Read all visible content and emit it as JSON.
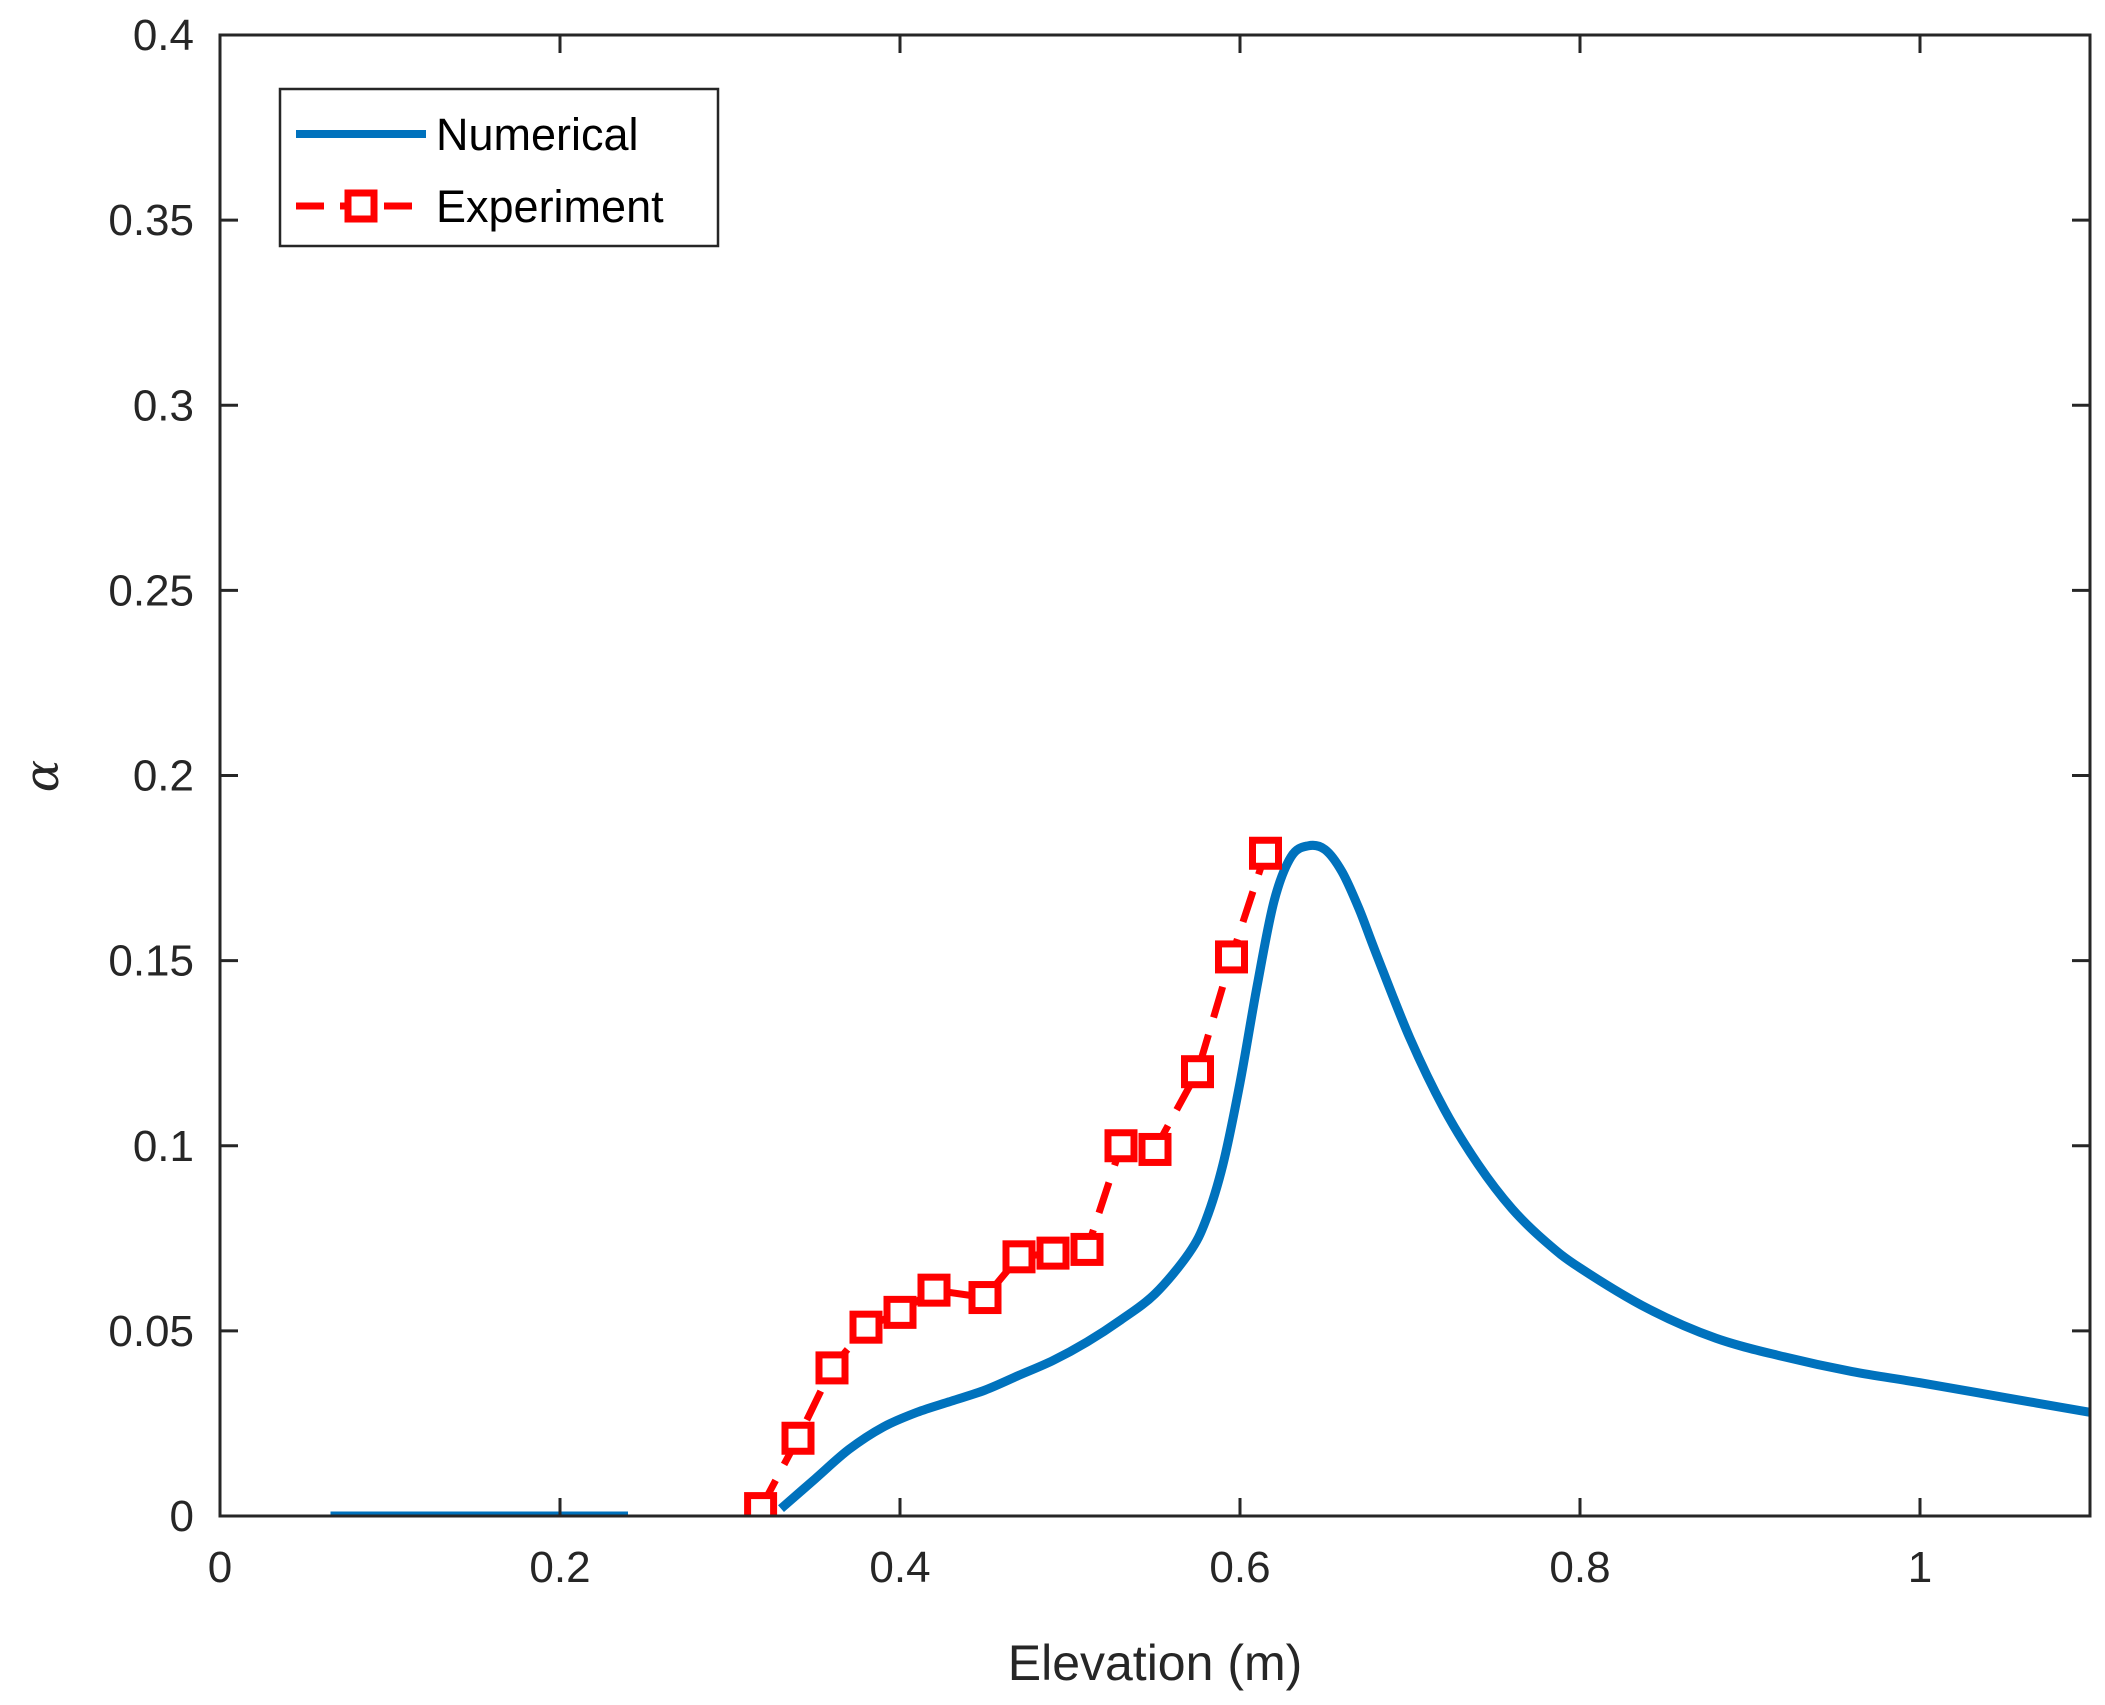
{
  "chart_data": {
    "type": "line",
    "title": "",
    "xlabel": "Elevation (m)",
    "ylabel": "α",
    "xlim": [
      0,
      1.1
    ],
    "ylim": [
      0,
      0.4
    ],
    "xticks": [
      0,
      0.2,
      0.4,
      0.6,
      0.8,
      1
    ],
    "xtick_labels": [
      "0",
      "0.2",
      "0.4",
      "0.6",
      "0.8",
      "1"
    ],
    "yticks": [
      0,
      0.05,
      0.1,
      0.15,
      0.2,
      0.25,
      0.3,
      0.35,
      0.4
    ],
    "ytick_labels": [
      "0",
      "0.05",
      "0.1",
      "0.15",
      "0.2",
      "0.25",
      "0.3",
      "0.35",
      "0.4"
    ],
    "grid": false,
    "legend_position": "top-left",
    "colors": {
      "numerical": "#0072BD",
      "experiment": "#FF0000",
      "axes": "#262626"
    },
    "series": [
      {
        "name": "Numerical",
        "style": "solid",
        "segments": [
          {
            "x": [
              0.065,
              0.24
            ],
            "y": [
              0.0,
              0.0
            ]
          },
          {
            "x": [
              0.33,
              0.35,
              0.37,
              0.39,
              0.41,
              0.43,
              0.45,
              0.47,
              0.49,
              0.51,
              0.53,
              0.55,
              0.57,
              0.58,
              0.59,
              0.6,
              0.61,
              0.62,
              0.63,
              0.64,
              0.65,
              0.66,
              0.67,
              0.68,
              0.7,
              0.72,
              0.74,
              0.76,
              0.78,
              0.8,
              0.84,
              0.88,
              0.92,
              0.96,
              1.0,
              1.05,
              1.1
            ],
            "y": [
              0.002,
              0.01,
              0.018,
              0.024,
              0.028,
              0.031,
              0.034,
              0.038,
              0.042,
              0.047,
              0.053,
              0.06,
              0.071,
              0.08,
              0.095,
              0.117,
              0.143,
              0.166,
              0.178,
              0.181,
              0.18,
              0.174,
              0.164,
              0.152,
              0.129,
              0.11,
              0.095,
              0.083,
              0.074,
              0.067,
              0.056,
              0.048,
              0.043,
              0.039,
              0.036,
              0.032,
              0.028
            ]
          }
        ]
      },
      {
        "name": "Experiment",
        "style": "dashed",
        "marker": "square",
        "x": [
          0.318,
          0.34,
          0.36,
          0.38,
          0.4,
          0.42,
          0.45,
          0.47,
          0.49,
          0.51,
          0.53,
          0.55,
          0.575,
          0.595,
          0.615
        ],
        "y": [
          0.002,
          0.021,
          0.04,
          0.051,
          0.055,
          0.061,
          0.059,
          0.07,
          0.071,
          0.072,
          0.1,
          0.099,
          0.12,
          0.151,
          0.179
        ]
      }
    ]
  }
}
